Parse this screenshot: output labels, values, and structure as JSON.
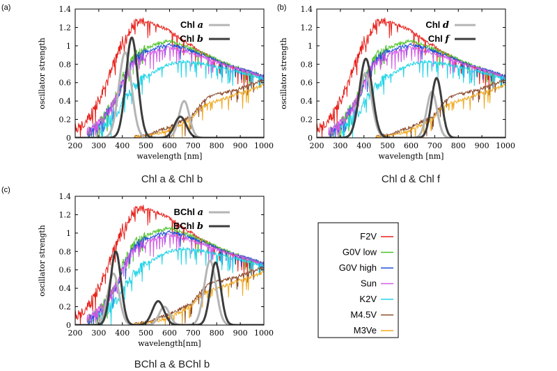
{
  "chart_data": [
    {
      "type": "line",
      "panel": "(a)",
      "caption": "Chl a & Chl b",
      "xlabel": "wavelength [nm]",
      "ylabel": "oscillator strength",
      "xlim": [
        200,
        1000
      ],
      "ylim": [
        0,
        1.4
      ],
      "xticks": [
        200,
        300,
        400,
        500,
        600,
        700,
        800,
        900,
        1000
      ],
      "yticks": [
        0,
        0.2,
        0.4,
        0.6,
        0.8,
        1,
        1.2,
        1.4
      ],
      "pigments": [
        {
          "label": "Chl",
          "italic": "a",
          "color": "#b4b4b4",
          "peaks": [
            [
              412,
              0.93,
              27
            ],
            [
              662,
              0.4,
              22
            ]
          ]
        },
        {
          "label": "Chl",
          "italic": "b",
          "color": "#3c3c3c",
          "peaks": [
            [
              440,
              1.09,
              25
            ],
            [
              646,
              0.23,
              25
            ]
          ]
        }
      ]
    },
    {
      "type": "line",
      "panel": "(b)",
      "caption": "Chl d & Chl f",
      "xlabel": "wavelength [nm]",
      "ylabel": "oscillator strength",
      "xlim": [
        200,
        1000
      ],
      "ylim": [
        0,
        1.4
      ],
      "xticks": [
        200,
        300,
        400,
        500,
        600,
        700,
        800,
        900,
        1000
      ],
      "yticks": [
        0,
        0.2,
        0.4,
        0.6,
        0.8,
        1,
        1.2,
        1.4
      ],
      "pigments": [
        {
          "label": "Chl",
          "italic": "d",
          "color": "#b4b4b4",
          "peaks": [
            [
              405,
              0.7,
              27
            ],
            [
              688,
              0.5,
              22
            ]
          ]
        },
        {
          "label": "Chl",
          "italic": "f",
          "color": "#3c3c3c",
          "peaks": [
            [
              408,
              0.86,
              27
            ],
            [
              708,
              0.65,
              22
            ]
          ]
        }
      ]
    },
    {
      "type": "line",
      "panel": "(c)",
      "caption": "BChl a & BChl b",
      "xlabel": "wavelength[nm]",
      "ylabel": "oscillator strength",
      "xlim": [
        200,
        1000
      ],
      "ylim": [
        0,
        1.4
      ],
      "xticks": [
        200,
        300,
        400,
        500,
        600,
        700,
        800,
        900,
        1000
      ],
      "yticks": [
        0,
        0.2,
        0.4,
        0.6,
        0.8,
        1,
        1.2,
        1.4
      ],
      "pigments": [
        {
          "label": "BChl",
          "italic": "a",
          "color": "#b4b4b4",
          "peaks": [
            [
              362,
              0.56,
              24
            ],
            [
              578,
              0.2,
              22
            ],
            [
              772,
              0.7,
              25
            ]
          ]
        },
        {
          "label": "BChl",
          "italic": "b",
          "color": "#3c3c3c",
          "peaks": [
            [
              372,
              0.8,
              22
            ],
            [
              552,
              0.26,
              25
            ],
            [
              795,
              0.68,
              22
            ]
          ]
        }
      ]
    }
  ],
  "stellar_key": [
    {
      "name": "F2V",
      "color": "#e8201a"
    },
    {
      "name": "G0V low",
      "color": "#4cc328"
    },
    {
      "name": "G0V high",
      "color": "#1f4fd8"
    },
    {
      "name": "Sun",
      "color": "#d25ae6"
    },
    {
      "name": "K2V",
      "color": "#22d4e6"
    },
    {
      "name": "M4.5V",
      "color": "#8c4a2a"
    },
    {
      "name": "M3Ve",
      "color": "#f0a81e"
    }
  ],
  "stellar_spectra": [
    {
      "name": "F2V",
      "points": [
        [
          200,
          0.1
        ],
        [
          250,
          0.18
        ],
        [
          300,
          0.4
        ],
        [
          350,
          0.7
        ],
        [
          380,
          0.9
        ],
        [
          400,
          1.05
        ],
        [
          420,
          1.1
        ],
        [
          440,
          1.2
        ],
        [
          460,
          1.25
        ],
        [
          500,
          1.26
        ],
        [
          550,
          1.22
        ],
        [
          600,
          1.16
        ],
        [
          650,
          1.07
        ],
        [
          700,
          0.99
        ],
        [
          750,
          0.91
        ],
        [
          800,
          0.84
        ],
        [
          850,
          0.78
        ],
        [
          900,
          0.73
        ],
        [
          950,
          0.7
        ],
        [
          1000,
          0.67
        ]
      ]
    },
    {
      "name": "G0V low",
      "points": [
        [
          250,
          0.05
        ],
        [
          300,
          0.15
        ],
        [
          350,
          0.35
        ],
        [
          380,
          0.48
        ],
        [
          400,
          0.65
        ],
        [
          430,
          0.8
        ],
        [
          460,
          0.9
        ],
        [
          500,
          0.97
        ],
        [
          550,
          1.03
        ],
        [
          600,
          1.05
        ],
        [
          650,
          1.01
        ],
        [
          700,
          0.96
        ],
        [
          750,
          0.91
        ],
        [
          800,
          0.85
        ],
        [
          850,
          0.8
        ],
        [
          900,
          0.75
        ],
        [
          950,
          0.71
        ],
        [
          1000,
          0.67
        ]
      ]
    },
    {
      "name": "G0V high",
      "points": [
        [
          250,
          0.04
        ],
        [
          300,
          0.13
        ],
        [
          350,
          0.32
        ],
        [
          380,
          0.45
        ],
        [
          400,
          0.6
        ],
        [
          430,
          0.76
        ],
        [
          460,
          0.86
        ],
        [
          500,
          0.93
        ],
        [
          550,
          0.98
        ],
        [
          600,
          1.01
        ],
        [
          650,
          0.98
        ],
        [
          700,
          0.94
        ],
        [
          750,
          0.89
        ],
        [
          800,
          0.84
        ],
        [
          850,
          0.79
        ],
        [
          900,
          0.75
        ],
        [
          950,
          0.71
        ],
        [
          1000,
          0.67
        ]
      ]
    },
    {
      "name": "Sun",
      "points": [
        [
          250,
          0.05
        ],
        [
          300,
          0.15
        ],
        [
          350,
          0.34
        ],
        [
          380,
          0.46
        ],
        [
          400,
          0.6
        ],
        [
          430,
          0.74
        ],
        [
          460,
          0.84
        ],
        [
          500,
          0.9
        ],
        [
          550,
          0.95
        ],
        [
          600,
          0.98
        ],
        [
          650,
          0.95
        ],
        [
          700,
          0.91
        ],
        [
          750,
          0.87
        ],
        [
          800,
          0.82
        ],
        [
          850,
          0.78
        ],
        [
          900,
          0.74
        ],
        [
          950,
          0.7
        ],
        [
          1000,
          0.66
        ]
      ]
    },
    {
      "name": "K2V",
      "points": [
        [
          300,
          0.08
        ],
        [
          350,
          0.2
        ],
        [
          380,
          0.28
        ],
        [
          400,
          0.38
        ],
        [
          430,
          0.48
        ],
        [
          460,
          0.58
        ],
        [
          500,
          0.66
        ],
        [
          550,
          0.74
        ],
        [
          600,
          0.8
        ],
        [
          650,
          0.83
        ],
        [
          700,
          0.82
        ],
        [
          750,
          0.8
        ],
        [
          800,
          0.77
        ],
        [
          850,
          0.74
        ],
        [
          900,
          0.71
        ],
        [
          950,
          0.68
        ],
        [
          1000,
          0.65
        ]
      ]
    },
    {
      "name": "M4.5V",
      "points": [
        [
          450,
          0.01
        ],
        [
          500,
          0.03
        ],
        [
          550,
          0.07
        ],
        [
          600,
          0.12
        ],
        [
          650,
          0.18
        ],
        [
          700,
          0.25
        ],
        [
          730,
          0.36
        ],
        [
          760,
          0.44
        ],
        [
          800,
          0.47
        ],
        [
          850,
          0.5
        ],
        [
          900,
          0.54
        ],
        [
          950,
          0.59
        ],
        [
          1000,
          0.62
        ]
      ]
    },
    {
      "name": "M3Ve",
      "points": [
        [
          450,
          0.01
        ],
        [
          500,
          0.02
        ],
        [
          550,
          0.05
        ],
        [
          600,
          0.09
        ],
        [
          650,
          0.15
        ],
        [
          700,
          0.22
        ],
        [
          720,
          0.3
        ],
        [
          760,
          0.37
        ],
        [
          800,
          0.4
        ],
        [
          850,
          0.44
        ],
        [
          900,
          0.49
        ],
        [
          950,
          0.53
        ],
        [
          1000,
          0.57
        ]
      ]
    }
  ]
}
